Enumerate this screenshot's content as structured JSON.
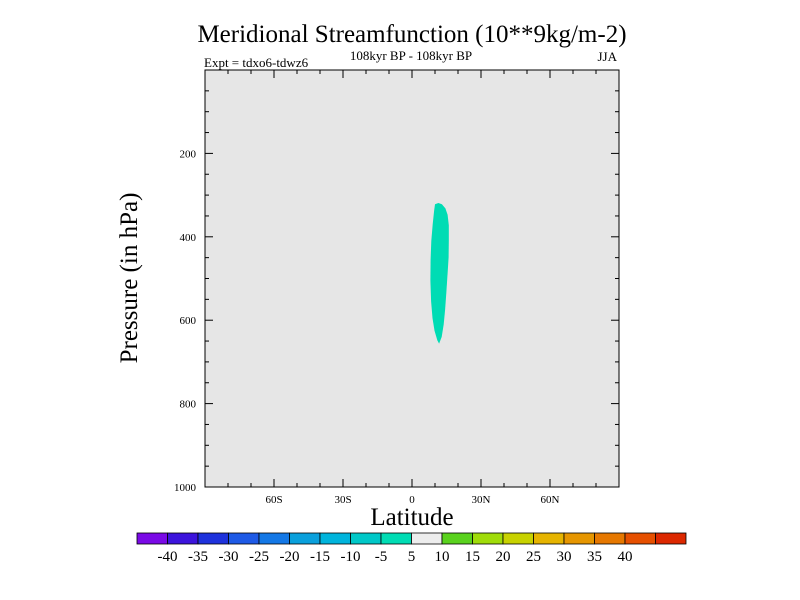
{
  "chart_data": {
    "type": "heatmap",
    "title": "Meridional Streamfunction (10**9kg/m-2)",
    "subtitle": "108kyr BP - 108kyr BP",
    "left_label": "Expt = tdxo6-tdwz6",
    "right_label": "JJA",
    "xlabel": "Latitude",
    "ylabel": "Pressure (in hPa)",
    "xlim": [
      -90,
      90
    ],
    "ylim": [
      0,
      1000
    ],
    "y_inverted": true,
    "x_ticks": [
      {
        "value": -60,
        "label": "60S"
      },
      {
        "value": -30,
        "label": "30S"
      },
      {
        "value": 0,
        "label": "0"
      },
      {
        "value": 30,
        "label": "30N"
      },
      {
        "value": 60,
        "label": "60N"
      }
    ],
    "x_minor_step": 10,
    "y_ticks": [
      {
        "value": 200,
        "label": "200"
      },
      {
        "value": 400,
        "label": "400"
      },
      {
        "value": 600,
        "label": "600"
      },
      {
        "value": 800,
        "label": "800"
      },
      {
        "value": 1000,
        "label": "1000"
      }
    ],
    "y_minor_step": 50,
    "background_color": "#e6e6e6",
    "contour_region": {
      "level_range": [
        -10,
        -5
      ],
      "color": "#00dcb4",
      "outline": [
        [
          10.0,
          322
        ],
        [
          11.5,
          319
        ],
        [
          13.0,
          322
        ],
        [
          14.5,
          332
        ],
        [
          15.5,
          347
        ],
        [
          16.0,
          372
        ],
        [
          16.0,
          410
        ],
        [
          15.9,
          450
        ],
        [
          15.4,
          495
        ],
        [
          14.9,
          535
        ],
        [
          14.4,
          575
        ],
        [
          13.8,
          610
        ],
        [
          12.9,
          640
        ],
        [
          11.8,
          656
        ],
        [
          11.0,
          648
        ],
        [
          9.8,
          625
        ],
        [
          8.9,
          595
        ],
        [
          8.3,
          555
        ],
        [
          8.0,
          505
        ],
        [
          8.1,
          455
        ],
        [
          8.4,
          410
        ],
        [
          9.0,
          370
        ],
        [
          9.6,
          338
        ]
      ]
    },
    "colorbar": {
      "labels": [
        "-40",
        "-35",
        "-30",
        "-25",
        "-20",
        "-15",
        "-10",
        "-5",
        "5",
        "10",
        "15",
        "20",
        "25",
        "30",
        "35",
        "40"
      ],
      "colors": [
        "#7a0ae6",
        "#3c14dc",
        "#1e32dc",
        "#1e5ae6",
        "#1478e6",
        "#0aa0dc",
        "#00b4dc",
        "#00c8c8",
        "#00dcb4",
        "#ededed",
        "#5ad21e",
        "#a0dc0a",
        "#c8d200",
        "#e6b400",
        "#e69600",
        "#e67800",
        "#e65000",
        "#dc2800"
      ]
    }
  }
}
